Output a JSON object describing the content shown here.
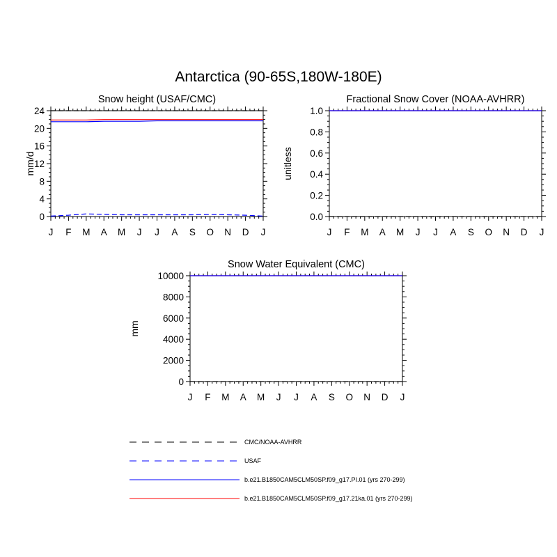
{
  "figure": {
    "title": "Antarctica (90-65S,180W-180E)"
  },
  "chart_data": [
    {
      "type": "line",
      "title": "Snow height (USAF/CMC)",
      "xlabel": "",
      "ylabel": "mm/d",
      "x": [
        "J",
        "F",
        "M",
        "A",
        "M",
        "J",
        "J",
        "A",
        "S",
        "O",
        "N",
        "D",
        "J"
      ],
      "xlim": [
        0,
        12
      ],
      "ylim": [
        0,
        24
      ],
      "yticks": [
        0,
        4,
        8,
        12,
        16,
        20,
        24
      ],
      "ytick_labels": [
        "0",
        "4",
        "8",
        "12",
        "16",
        "20",
        "24"
      ],
      "series": [
        {
          "name": "CMC/NOAA-AVHRR",
          "color": "#000000",
          "dash": "dashed",
          "values": [
            24,
            24,
            24,
            24,
            24,
            24,
            24,
            24,
            24,
            24,
            24,
            24,
            24
          ]
        },
        {
          "name": "USAF",
          "color": "#0000ff",
          "dash": "dashed",
          "values": [
            0.1,
            0.3,
            0.6,
            0.5,
            0.4,
            0.4,
            0.4,
            0.4,
            0.4,
            0.45,
            0.4,
            0.3,
            0.1
          ]
        },
        {
          "name": "b.e21.B1850CAM5CLM50SP.f09_g17.PI.01 (yrs 270-299)",
          "color": "#0000ff",
          "dash": "solid",
          "values": [
            21.5,
            21.5,
            21.5,
            21.6,
            21.6,
            21.6,
            21.7,
            21.7,
            21.7,
            21.7,
            21.7,
            21.7,
            21.7
          ]
        },
        {
          "name": "b.e21.B1850CAM5CLM50SP.f09_g17.21ka.01 (yrs 270-299)",
          "color": "#ff0000",
          "dash": "solid",
          "values": [
            21.9,
            21.9,
            21.9,
            22.0,
            22.0,
            22.0,
            22.0,
            22.0,
            22.0,
            22.0,
            22.0,
            22.0,
            22.0
          ]
        }
      ]
    },
    {
      "type": "line",
      "title": "Fractional Snow Cover (NOAA-AVHRR)",
      "xlabel": "",
      "ylabel": "unitless",
      "x": [
        "J",
        "F",
        "M",
        "A",
        "M",
        "J",
        "J",
        "A",
        "S",
        "O",
        "N",
        "D",
        "J"
      ],
      "xlim": [
        0,
        12
      ],
      "ylim": [
        0,
        1
      ],
      "yticks": [
        0,
        0.2,
        0.4,
        0.6,
        0.8,
        1.0
      ],
      "ytick_labels": [
        "0.0",
        "0.2",
        "0.4",
        "0.6",
        "0.8",
        "1.0"
      ],
      "series": [
        {
          "name": "CMC/NOAA-AVHRR",
          "color": "#000000",
          "dash": "dashed",
          "values": [
            0,
            0,
            0,
            0,
            0,
            0,
            0,
            0,
            0,
            0,
            0,
            0,
            0
          ]
        },
        {
          "name": "b.e21.B1850CAM5CLM50SP.f09_g17.21ka.01 (yrs 270-299)",
          "color": "#ff0000",
          "dash": "solid",
          "values": [
            1,
            1,
            1,
            1,
            1,
            1,
            1,
            1,
            1,
            1,
            1,
            1,
            1
          ]
        },
        {
          "name": "b.e21.B1850CAM5CLM50SP.f09_g17.PI.01 (yrs 270-299)",
          "color": "#0000ff",
          "dash": "solid",
          "values": [
            1,
            1,
            1,
            1,
            1,
            1,
            1,
            1,
            1,
            1,
            1,
            1,
            1
          ]
        }
      ]
    },
    {
      "type": "line",
      "title": "Snow Water Equivalent (CMC)",
      "xlabel": "",
      "ylabel": "mm",
      "x": [
        "J",
        "F",
        "M",
        "A",
        "M",
        "J",
        "J",
        "A",
        "S",
        "O",
        "N",
        "D",
        "J"
      ],
      "xlim": [
        0,
        12
      ],
      "ylim": [
        0,
        10000
      ],
      "yticks": [
        0,
        2000,
        4000,
        6000,
        8000,
        10000
      ],
      "ytick_labels": [
        "0",
        "2000",
        "4000",
        "6000",
        "8000",
        "10000"
      ],
      "series": [
        {
          "name": "CMC/NOAA-AVHRR",
          "color": "#000000",
          "dash": "dashed",
          "values": [
            0,
            0,
            0,
            0,
            0,
            0,
            0,
            0,
            0,
            0,
            0,
            0,
            0
          ]
        },
        {
          "name": "b.e21.B1850CAM5CLM50SP.f09_g17.21ka.01 (yrs 270-299)",
          "color": "#ff0000",
          "dash": "solid",
          "values": [
            10000,
            10000,
            10000,
            10000,
            10000,
            10000,
            10000,
            10000,
            10000,
            10000,
            10000,
            10000,
            10000
          ]
        },
        {
          "name": "b.e21.B1850CAM5CLM50SP.f09_g17.PI.01 (yrs 270-299)",
          "color": "#0000ff",
          "dash": "solid",
          "values": [
            10000,
            10000,
            10000,
            10000,
            10000,
            10000,
            10000,
            10000,
            10000,
            10000,
            10000,
            10000,
            10000
          ]
        }
      ]
    }
  ],
  "legend": {
    "placement": "bottom-center",
    "entries": [
      {
        "label": "CMC/NOAA-AVHRR",
        "color": "#000000",
        "dash": "dashed"
      },
      {
        "label": "USAF",
        "color": "#0000ff",
        "dash": "dashed"
      },
      {
        "label": "b.e21.B1850CAM5CLM50SP.f09_g17.PI.01 (yrs 270-299)",
        "color": "#0000ff",
        "dash": "solid"
      },
      {
        "label": "b.e21.B1850CAM5CLM50SP.f09_g17.21ka.01 (yrs 270-299)",
        "color": "#ff0000",
        "dash": "solid"
      }
    ]
  }
}
